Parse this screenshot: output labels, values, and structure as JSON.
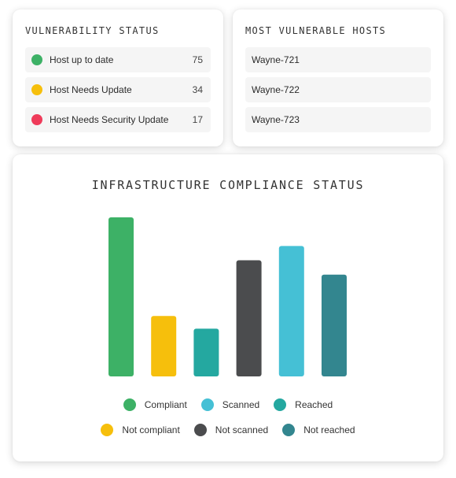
{
  "vulnerability_status": {
    "title": "VULNERABILITY STATUS",
    "rows": [
      {
        "label": "Host up to date",
        "count": "75",
        "color": "#3db166"
      },
      {
        "label": "Host Needs Update",
        "count": "34",
        "color": "#f6bf0c"
      },
      {
        "label": "Host Needs Security Update",
        "count": "17",
        "color": "#ef3b5a"
      }
    ]
  },
  "most_vulnerable_hosts": {
    "title": "MOST VULNERABLE HOSTS",
    "hosts": [
      "Wayne-721",
      "Wayne-722",
      "Wayne-723"
    ]
  },
  "infrastructure": {
    "title": "INFRASTRUCTURE COMPLIANCE STATUS",
    "legend_rows": [
      [
        "Compliant",
        "Scanned",
        "Reached"
      ],
      [
        "Not compliant",
        "Not scanned",
        "Not reached"
      ]
    ]
  },
  "chart_data": {
    "type": "bar",
    "title": "INFRASTRUCTURE COMPLIANCE STATUS",
    "categories": [
      "Compliant",
      "Not compliant",
      "Reached",
      "Not scanned",
      "Scanned",
      "Not reached"
    ],
    "values": [
      100,
      38,
      30,
      73,
      82,
      64
    ],
    "colors": [
      "#3db166",
      "#f6bf0c",
      "#24a8a0",
      "#4b4c4e",
      "#45c0d5",
      "#33868f"
    ],
    "ylim": [
      0,
      100
    ],
    "grid": false,
    "axes_visible": false,
    "legend_position": "bottom",
    "legend": [
      {
        "name": "Compliant",
        "color": "#3db166"
      },
      {
        "name": "Scanned",
        "color": "#45c0d5"
      },
      {
        "name": "Reached",
        "color": "#24a8a0"
      },
      {
        "name": "Not compliant",
        "color": "#f6bf0c"
      },
      {
        "name": "Not scanned",
        "color": "#4b4c4e"
      },
      {
        "name": "Not reached",
        "color": "#33868f"
      }
    ]
  }
}
